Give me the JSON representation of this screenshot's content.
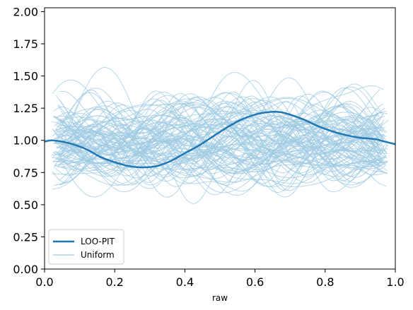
{
  "chart_data": {
    "type": "line",
    "title": "",
    "xlabel": "raw",
    "ylabel": "",
    "xlim": [
      0.0,
      1.0
    ],
    "ylim": [
      0.0,
      2.03
    ],
    "x_ticks": [
      "0.0",
      "0.2",
      "0.4",
      "0.6",
      "0.8",
      "1.0"
    ],
    "y_ticks": [
      "0.00",
      "0.25",
      "0.50",
      "0.75",
      "1.00",
      "1.25",
      "1.50",
      "1.75",
      "2.00"
    ],
    "grid": false,
    "legend_position": "lower-left",
    "legend": [
      "LOO-PIT",
      "Uniform"
    ],
    "colors": {
      "loo_pit": "#1f77b4",
      "uniform": "#9ecae1"
    },
    "series": [
      {
        "name": "LOO-PIT",
        "x": [
          0.0,
          0.02,
          0.05,
          0.08,
          0.12,
          0.16,
          0.2,
          0.24,
          0.28,
          0.32,
          0.36,
          0.4,
          0.44,
          0.48,
          0.52,
          0.56,
          0.6,
          0.64,
          0.67,
          0.7,
          0.74,
          0.78,
          0.82,
          0.86,
          0.9,
          0.94,
          0.97,
          1.0
        ],
        "values": [
          0.99,
          1.0,
          0.99,
          0.97,
          0.93,
          0.87,
          0.83,
          0.8,
          0.79,
          0.8,
          0.84,
          0.9,
          0.96,
          1.03,
          1.1,
          1.16,
          1.2,
          1.22,
          1.22,
          1.2,
          1.16,
          1.11,
          1.07,
          1.04,
          1.02,
          1.01,
          0.99,
          0.97
        ]
      }
    ],
    "uniform_samples": {
      "count": 100,
      "x_range": [
        0.02,
        0.98
      ],
      "y_range": [
        0.35,
        1.95
      ],
      "typical_center": 1.0
    }
  }
}
